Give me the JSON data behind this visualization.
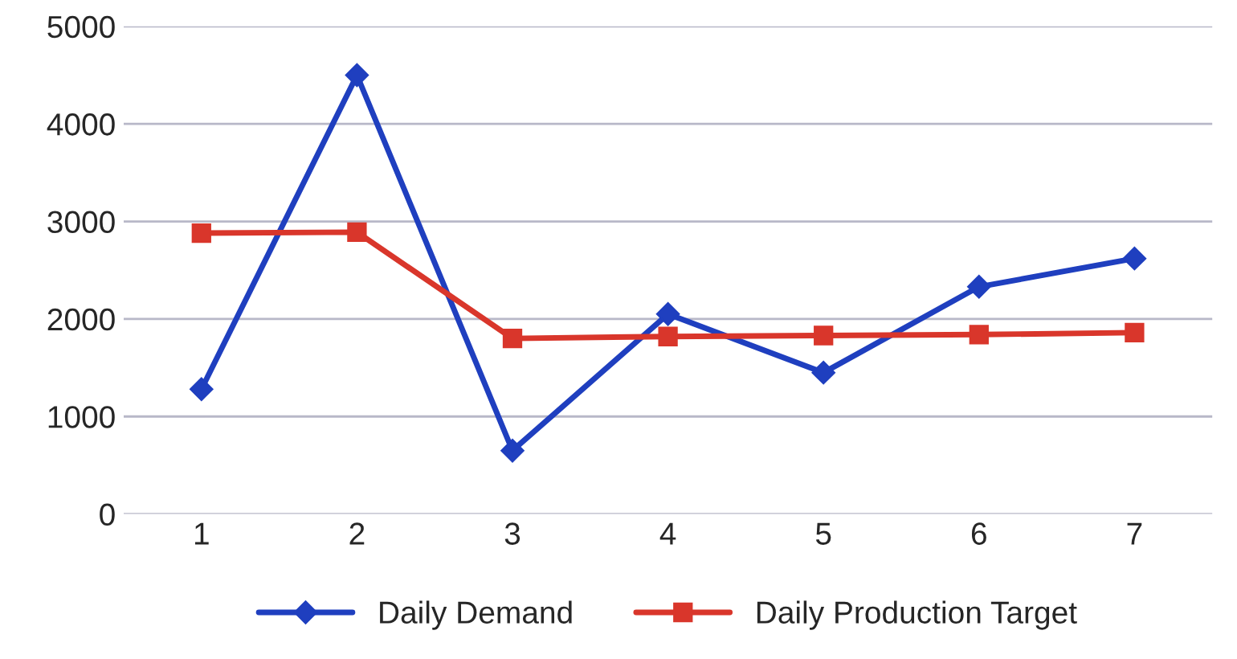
{
  "chart_data": {
    "type": "line",
    "categories": [
      "1",
      "2",
      "3",
      "4",
      "5",
      "6",
      "7"
    ],
    "series": [
      {
        "name": "Daily Demand",
        "color": "#1f3fbf",
        "marker": "diamond",
        "values": [
          1280,
          4500,
          650,
          2050,
          1450,
          2330,
          2620
        ]
      },
      {
        "name": "Daily Production Target",
        "color": "#d9362b",
        "marker": "square",
        "values": [
          2880,
          2890,
          1800,
          1820,
          1830,
          1840,
          1860
        ]
      }
    ],
    "ylim": [
      0,
      5000
    ],
    "yticks": [
      0,
      1000,
      2000,
      3000,
      4000,
      5000
    ],
    "grid": "y",
    "legend": "bottom",
    "line_style": "solid"
  }
}
